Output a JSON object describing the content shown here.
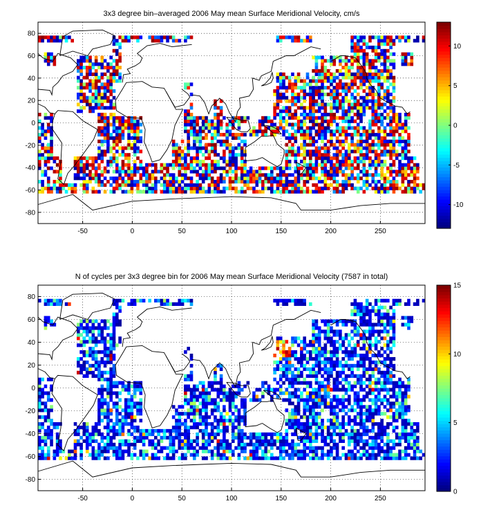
{
  "chart_data": [
    {
      "type": "heatmap",
      "title": "3x3 degree bin–averaged 2006 May mean Surface Meridional Velocity, cm/s",
      "xlabel": "",
      "ylabel": "",
      "xlim": [
        -95,
        295
      ],
      "ylim": [
        -90,
        90
      ],
      "xticks": [
        -50,
        0,
        50,
        100,
        150,
        200,
        250
      ],
      "yticks": [
        -80,
        -60,
        -40,
        -20,
        0,
        20,
        40,
        60,
        80
      ],
      "grid": "dotted",
      "bin_size_deg": 3,
      "colorbar": {
        "min": -13,
        "max": 13,
        "ticks": [
          -10,
          -5,
          0,
          5,
          10
        ],
        "colormap": "jet"
      }
    },
    {
      "type": "heatmap",
      "title": "N of cycles per 3x3 degree bin for 2006 May mean Surface Meridional Velocity (7587 in total)",
      "xlabel": "",
      "ylabel": "",
      "xlim": [
        -95,
        295
      ],
      "ylim": [
        -90,
        90
      ],
      "xticks": [
        -50,
        0,
        50,
        100,
        150,
        200,
        250
      ],
      "yticks": [
        -80,
        -60,
        -40,
        -20,
        0,
        20,
        40,
        60,
        80
      ],
      "grid": "dotted",
      "bin_size_deg": 3,
      "colorbar": {
        "min": 0,
        "max": 15,
        "ticks": [
          0,
          5,
          10,
          15
        ],
        "colormap": "jet"
      }
    }
  ]
}
